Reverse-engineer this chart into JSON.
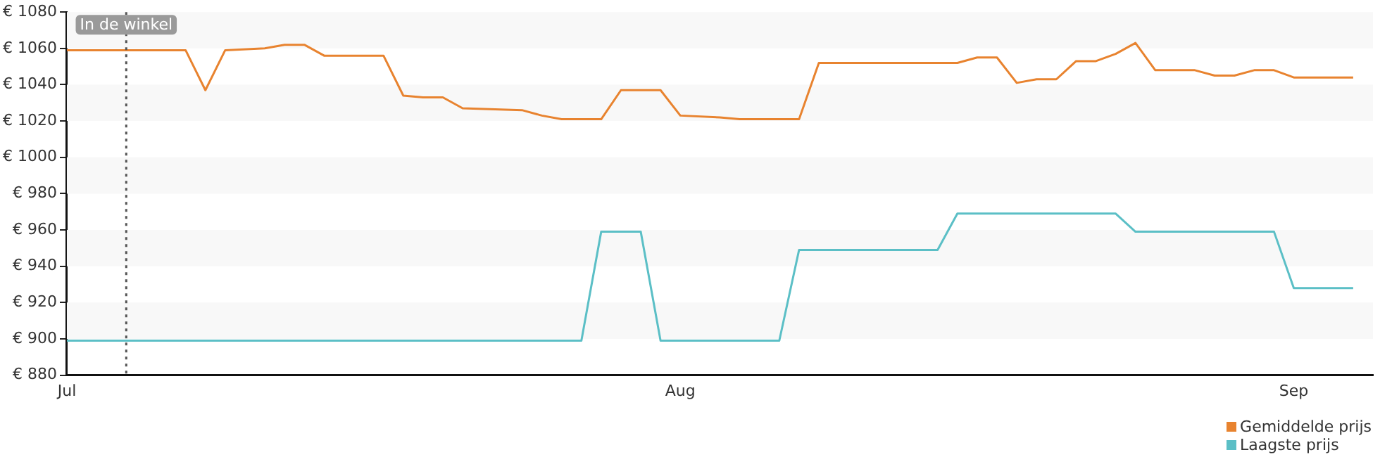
{
  "chart_data": {
    "type": "line",
    "series": [
      {
        "name": "Gemiddelde prijs",
        "color": "#e8832f",
        "x": [
          "--07-01",
          "--07-07",
          "--07-08",
          "--07-09",
          "--07-11",
          "--07-12",
          "--07-13",
          "--07-14",
          "--07-17",
          "--07-18",
          "--07-19",
          "--07-20",
          "--07-21",
          "--07-24",
          "--07-25",
          "--07-26",
          "--07-28",
          "--07-29",
          "--07-31",
          "--08-01",
          "--08-03",
          "--08-04",
          "--08-07",
          "--08-08",
          "--08-15",
          "--08-16",
          "--08-17",
          "--08-18",
          "--08-19",
          "--08-20",
          "--08-21",
          "--08-22",
          "--08-23",
          "--08-24",
          "--08-25",
          "--08-27",
          "--08-28",
          "--08-29",
          "--08-30",
          "--08-31",
          "--09-01",
          "--09-04"
        ],
        "values": [
          1059,
          1059,
          1037,
          1059,
          1060,
          1062,
          1062,
          1056,
          1056,
          1034,
          1033,
          1033,
          1027,
          1026,
          1023,
          1021,
          1021,
          1037,
          1037,
          1023,
          1022,
          1021,
          1021,
          1052,
          1052,
          1055,
          1055,
          1041,
          1043,
          1043,
          1053,
          1053,
          1057,
          1063,
          1048,
          1048,
          1045,
          1045,
          1048,
          1048,
          1044,
          1044
        ]
      },
      {
        "name": "Laagste prijs",
        "color": "#5bbfc6",
        "x": [
          "--07-01",
          "--07-27",
          "--07-28",
          "--07-30",
          "--07-31",
          "--08-06",
          "--08-07",
          "--08-14",
          "--08-15",
          "--08-23",
          "--08-24",
          "--08-31",
          "--09-01",
          "--09-04"
        ],
        "values": [
          899,
          899,
          959,
          959,
          899,
          899,
          949,
          949,
          969,
          969,
          959,
          959,
          928,
          928
        ]
      }
    ],
    "xlim": [
      "--07-01",
      "--09-05"
    ],
    "xticks": [
      {
        "value": "--07-01",
        "label": "Jul"
      },
      {
        "value": "--08-01",
        "label": "Aug"
      },
      {
        "value": "--09-01",
        "label": "Sep"
      }
    ],
    "ylim": [
      880,
      1080
    ],
    "yticks": [
      {
        "value": 880,
        "label": "€ 880"
      },
      {
        "value": 900,
        "label": "€ 900"
      },
      {
        "value": 920,
        "label": "€ 920"
      },
      {
        "value": 940,
        "label": "€ 940"
      },
      {
        "value": 960,
        "label": "€ 960"
      },
      {
        "value": 980,
        "label": "€ 980"
      },
      {
        "value": 1000,
        "label": "€ 1000"
      },
      {
        "value": 1020,
        "label": "€ 1020"
      },
      {
        "value": 1040,
        "label": "€ 1040"
      },
      {
        "value": 1060,
        "label": "€ 1060"
      },
      {
        "value": 1080,
        "label": "€ 1080"
      }
    ],
    "ref_lines": [
      {
        "axis": "x",
        "value": "--07-04",
        "label": "In de winkel",
        "color": "#555555",
        "line_style": "dotted"
      }
    ],
    "legend": "bottom right",
    "marker": "none",
    "line_style": "solid"
  }
}
